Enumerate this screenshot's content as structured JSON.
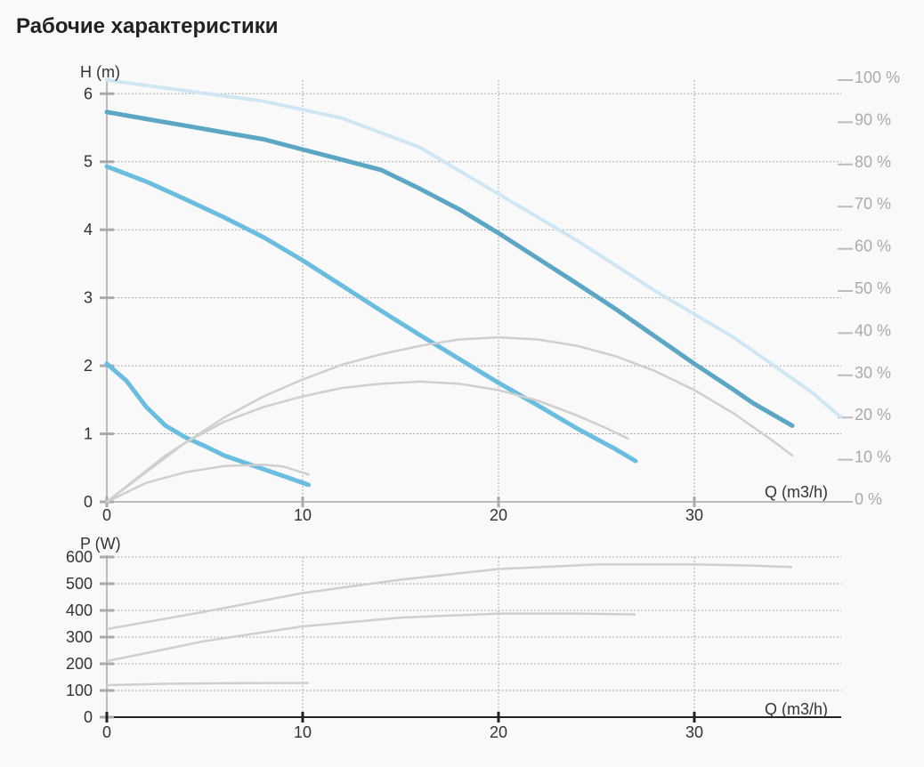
{
  "page": {
    "title": "Рабочие характеристики"
  },
  "chart_data": [
    {
      "type": "line",
      "name": "head",
      "ylabel": "H (m)",
      "xlabel": "Q (m3/h)",
      "xlim": [
        0,
        37.5
      ],
      "ylim": [
        0,
        6.2
      ],
      "xticks": [
        "0",
        "10",
        "20",
        "30"
      ],
      "yticks": [
        "0",
        "1",
        "2",
        "3",
        "4",
        "5",
        "6"
      ],
      "y2lim": [
        0,
        100
      ],
      "y2ticks": [
        "0 %",
        "10 %",
        "20 %",
        "30 %",
        "40 %",
        "50 %",
        "60 %",
        "70 %",
        "80 %",
        "90 %",
        "100 %"
      ],
      "colors": {
        "head_curve": "#6bbde0",
        "head_curve_dark": "#5ba6c4",
        "efficiency_curve": "#cfcfcf",
        "efficiency_dotted": "#cfe6f4",
        "grid": "#aaaaaa"
      },
      "series": [
        {
          "key": "head_max",
          "axis": "H",
          "style": "head-dark",
          "points": [
            [
              0,
              5.73
            ],
            [
              2,
              5.63
            ],
            [
              4,
              5.53
            ],
            [
              6,
              5.43
            ],
            [
              8,
              5.33
            ],
            [
              10,
              5.18
            ],
            [
              12,
              5.03
            ],
            [
              14,
              4.88
            ],
            [
              16,
              4.6
            ],
            [
              18,
              4.3
            ],
            [
              20,
              3.95
            ],
            [
              22,
              3.58
            ],
            [
              24,
              3.21
            ],
            [
              26,
              2.83
            ],
            [
              28,
              2.43
            ],
            [
              30,
              2.03
            ],
            [
              32,
              1.65
            ],
            [
              33,
              1.45
            ],
            [
              35,
              1.12
            ]
          ]
        },
        {
          "key": "head_mid",
          "axis": "H",
          "style": "head",
          "points": [
            [
              0,
              4.93
            ],
            [
              2,
              4.71
            ],
            [
              4,
              4.45
            ],
            [
              6,
              4.18
            ],
            [
              8,
              3.89
            ],
            [
              10,
              3.55
            ],
            [
              12,
              3.18
            ],
            [
              14,
              2.81
            ],
            [
              16,
              2.45
            ],
            [
              18,
              2.1
            ],
            [
              20,
              1.75
            ],
            [
              22,
              1.42
            ],
            [
              24,
              1.08
            ],
            [
              26,
              0.77
            ],
            [
              27,
              0.6
            ]
          ]
        },
        {
          "key": "head_min",
          "axis": "H",
          "style": "head",
          "points": [
            [
              0,
              2.03
            ],
            [
              1,
              1.78
            ],
            [
              2,
              1.4
            ],
            [
              3,
              1.12
            ],
            [
              4,
              0.95
            ],
            [
              5,
              0.82
            ],
            [
              6,
              0.68
            ],
            [
              7,
              0.58
            ],
            [
              8,
              0.48
            ],
            [
              9,
              0.38
            ],
            [
              10.3,
              0.25
            ]
          ]
        },
        {
          "key": "eta_max",
          "axis": "eta",
          "style": "eff",
          "points": [
            [
              0,
              0
            ],
            [
              3,
              11
            ],
            [
              6,
              20
            ],
            [
              8,
              25
            ],
            [
              10,
              29
            ],
            [
              12,
              32.5
            ],
            [
              14,
              35
            ],
            [
              16,
              37
            ],
            [
              18,
              38.5
            ],
            [
              20,
              39
            ],
            [
              22,
              38.5
            ],
            [
              24,
              37
            ],
            [
              26,
              34.5
            ],
            [
              28,
              31
            ],
            [
              30,
              26.5
            ],
            [
              32,
              21
            ],
            [
              34,
              14.5
            ],
            [
              35,
              11
            ]
          ]
        },
        {
          "key": "eta_mid",
          "axis": "eta",
          "style": "eff",
          "points": [
            [
              0,
              0
            ],
            [
              2,
              7
            ],
            [
              4,
              14
            ],
            [
              6,
              19
            ],
            [
              8,
              22.5
            ],
            [
              10,
              25
            ],
            [
              12,
              27
            ],
            [
              14,
              28
            ],
            [
              16,
              28.5
            ],
            [
              18,
              28
            ],
            [
              20,
              26.5
            ],
            [
              22,
              24
            ],
            [
              24,
              20.5
            ],
            [
              25.5,
              17.5
            ],
            [
              26.6,
              15
            ]
          ]
        },
        {
          "key": "eta_min",
          "axis": "eta",
          "style": "eff",
          "points": [
            [
              0,
              0
            ],
            [
              2,
              4.5
            ],
            [
              4,
              7
            ],
            [
              6,
              8.5
            ],
            [
              8,
              8.8
            ],
            [
              9,
              8.4
            ],
            [
              10.3,
              6.5
            ]
          ]
        },
        {
          "key": "eta_dotted",
          "axis": "eta",
          "style": "eff-dotted",
          "points": [
            [
              0,
              100
            ],
            [
              4,
              97.5
            ],
            [
              8,
              95
            ],
            [
              12,
              91
            ],
            [
              16,
              84
            ],
            [
              20,
              73
            ],
            [
              24,
              62
            ],
            [
              28,
              50
            ],
            [
              32,
              39
            ],
            [
              36,
              26
            ],
            [
              37.5,
              20
            ]
          ]
        }
      ]
    },
    {
      "type": "line",
      "name": "power",
      "ylabel": "P (W)",
      "xlabel": "Q (m3/h)",
      "xlim": [
        0,
        37.5
      ],
      "ylim": [
        0,
        600
      ],
      "xticks": [
        "0",
        "10",
        "20",
        "30"
      ],
      "yticks": [
        "0",
        "100",
        "200",
        "300",
        "400",
        "500",
        "600"
      ],
      "series": [
        {
          "key": "p_max",
          "points": [
            [
              0,
              330
            ],
            [
              5,
              395
            ],
            [
              10,
              465
            ],
            [
              15,
              515
            ],
            [
              20,
              555
            ],
            [
              25,
              572
            ],
            [
              30,
              572
            ],
            [
              33,
              568
            ],
            [
              35,
              562
            ]
          ]
        },
        {
          "key": "p_mid",
          "points": [
            [
              0,
              210
            ],
            [
              5,
              285
            ],
            [
              10,
              340
            ],
            [
              15,
              373
            ],
            [
              20,
              388
            ],
            [
              24,
              388
            ],
            [
              27,
              385
            ]
          ]
        },
        {
          "key": "p_min",
          "points": [
            [
              0,
              120
            ],
            [
              3,
              125
            ],
            [
              6,
              127
            ],
            [
              8,
              128
            ],
            [
              10.3,
              128
            ]
          ]
        }
      ]
    }
  ]
}
